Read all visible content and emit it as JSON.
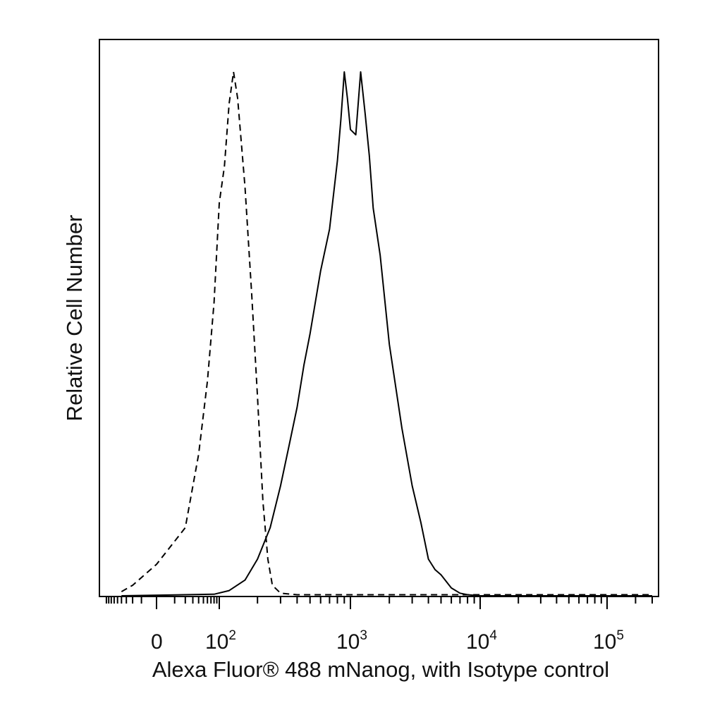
{
  "chart_data": {
    "type": "line",
    "xlabel": "Alexa Fluor® 488 mNanog, with Isotype control",
    "ylabel": "Relative Cell Number",
    "x_scale": "biexponential",
    "xlim": [
      -50,
      300000
    ],
    "ylim": [
      0,
      100
    ],
    "grid": false,
    "legend": "none",
    "x_major_ticks": [
      {
        "value": 0,
        "base": "0",
        "exp": ""
      },
      {
        "value": 100,
        "base": "10",
        "exp": "2"
      },
      {
        "value": 1000,
        "base": "10",
        "exp": "3"
      },
      {
        "value": 10000,
        "base": "10",
        "exp": "4"
      },
      {
        "value": 100000,
        "base": "10",
        "exp": "5"
      }
    ],
    "series": [
      {
        "style": "dashed",
        "color": "#000000",
        "x": [
          -40,
          -20,
          0,
          20,
          40,
          60,
          80,
          100,
          110,
          120,
          130,
          140,
          160,
          180,
          200,
          220,
          240,
          260,
          300,
          400,
          1000,
          10000,
          300000
        ],
        "y": [
          0.8,
          2,
          6,
          13,
          27,
          41,
          56,
          75,
          82,
          94,
          100,
          95,
          78,
          58,
          38,
          18,
          7,
          2,
          0.5,
          0.2,
          0.2,
          0.2,
          0.2
        ]
      },
      {
        "style": "solid",
        "color": "#000000",
        "x": [
          -40,
          80,
          120,
          160,
          200,
          250,
          300,
          350,
          400,
          450,
          500,
          600,
          700,
          800,
          850,
          900,
          950,
          1000,
          1100,
          1200,
          1300,
          1400,
          1500,
          1700,
          2000,
          2500,
          3000,
          3500,
          4000,
          4500,
          5000,
          6000,
          7000,
          8000,
          10000,
          300000
        ],
        "y": [
          0,
          0.3,
          1,
          3,
          7,
          13,
          21,
          29,
          36,
          44,
          50,
          62,
          70,
          83,
          91,
          100,
          95,
          89,
          88,
          100,
          92,
          84,
          74,
          65,
          48,
          32,
          21,
          14,
          7,
          5,
          4,
          1.5,
          0.5,
          0.2,
          0,
          0
        ]
      }
    ]
  }
}
